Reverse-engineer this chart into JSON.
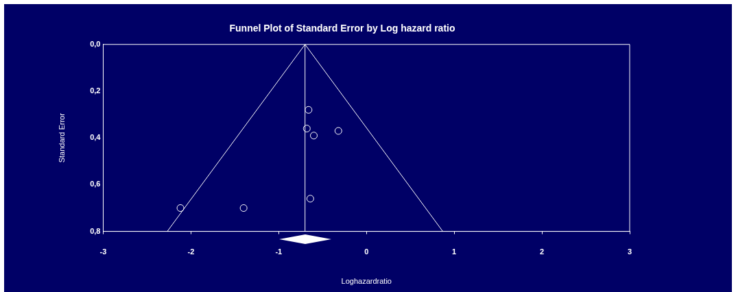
{
  "chart_data": {
    "type": "scatter",
    "title": "Funnel Plot of Standard Error by Log hazard ratio",
    "xlabel": "Loghazardratio",
    "ylabel": "Standard Error",
    "series": [
      {
        "marker": "circle",
        "color": "#ffffff",
        "x": [
          -0.66,
          -0.68,
          -0.6,
          -0.32,
          -0.64,
          -2.12,
          -1.4
        ],
        "values": [
          0.28,
          0.36,
          0.39,
          0.37,
          0.66,
          0.7,
          0.7
        ]
      },
      {
        "type": "line",
        "marker": "none",
        "color": "#ffffff",
        "x": [
          -2.27,
          -0.7,
          0.87
        ],
        "values": [
          0.8,
          0,
          0.8
        ]
      }
    ],
    "ref_lines": [
      {
        "axis": "x",
        "value": -0.7,
        "color": "#ffffff"
      }
    ],
    "xlim": [
      -3,
      3
    ],
    "xticks": [
      -3,
      -2,
      -1,
      0,
      1,
      2,
      3
    ],
    "ylim": [
      0.8,
      0
    ],
    "yticks": [
      {
        "value": 0,
        "label": "0,0"
      },
      {
        "value": 0.2,
        "label": "0,2"
      },
      {
        "value": 0.4,
        "label": "0,4"
      },
      {
        "value": 0.6,
        "label": "0,6"
      },
      {
        "value": 0.8,
        "label": "0,8"
      }
    ],
    "line_style": "solid",
    "grid": false,
    "legend": false
  }
}
